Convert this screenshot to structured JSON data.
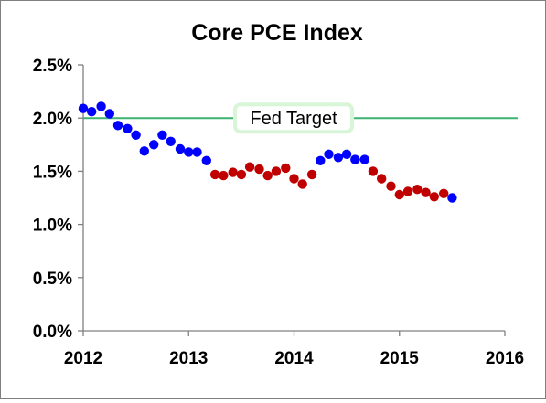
{
  "chart_data": {
    "type": "scatter",
    "title": "Core PCE Index",
    "xlabel": "",
    "ylabel": "",
    "xlim": [
      2012,
      2016
    ],
    "ylim": [
      0.0,
      2.5
    ],
    "x_ticks": [
      "2012",
      "2013",
      "2014",
      "2015",
      "2016"
    ],
    "y_ticks": [
      "0.0%",
      "0.5%",
      "1.0%",
      "1.5%",
      "2.0%",
      "2.5%"
    ],
    "grid": false,
    "legend": "none",
    "colors": {
      "above": "#0000ff",
      "below": "#c00000",
      "target_line": "#3cb371"
    },
    "reference_line": {
      "label": "Fed Target",
      "value": 2.0
    },
    "series": [
      {
        "color": "#0000ff",
        "points": [
          [
            2012.0,
            2.09
          ],
          [
            2012.08,
            2.06
          ],
          [
            2012.17,
            2.11
          ],
          [
            2012.25,
            2.04
          ],
          [
            2012.33,
            1.93
          ],
          [
            2012.42,
            1.9
          ],
          [
            2012.5,
            1.84
          ],
          [
            2012.58,
            1.69
          ],
          [
            2012.67,
            1.75
          ],
          [
            2012.75,
            1.84
          ],
          [
            2012.83,
            1.78
          ],
          [
            2012.92,
            1.71
          ],
          [
            2013.0,
            1.68
          ],
          [
            2013.08,
            1.68
          ],
          [
            2013.17,
            1.6
          ],
          [
            2014.25,
            1.6
          ],
          [
            2014.33,
            1.66
          ],
          [
            2014.42,
            1.63
          ],
          [
            2014.5,
            1.66
          ],
          [
            2014.58,
            1.61
          ],
          [
            2014.67,
            1.61
          ],
          [
            2015.5,
            1.25
          ]
        ]
      },
      {
        "color": "#c00000",
        "points": [
          [
            2013.25,
            1.47
          ],
          [
            2013.33,
            1.46
          ],
          [
            2013.42,
            1.49
          ],
          [
            2013.5,
            1.47
          ],
          [
            2013.58,
            1.54
          ],
          [
            2013.67,
            1.52
          ],
          [
            2013.75,
            1.46
          ],
          [
            2013.83,
            1.5
          ],
          [
            2013.92,
            1.53
          ],
          [
            2014.0,
            1.43
          ],
          [
            2014.08,
            1.38
          ],
          [
            2014.17,
            1.47
          ],
          [
            2014.75,
            1.5
          ],
          [
            2014.83,
            1.43
          ],
          [
            2014.92,
            1.36
          ],
          [
            2015.0,
            1.28
          ],
          [
            2015.08,
            1.31
          ],
          [
            2015.17,
            1.33
          ],
          [
            2015.25,
            1.3
          ],
          [
            2015.33,
            1.26
          ],
          [
            2015.42,
            1.29
          ]
        ]
      }
    ]
  }
}
